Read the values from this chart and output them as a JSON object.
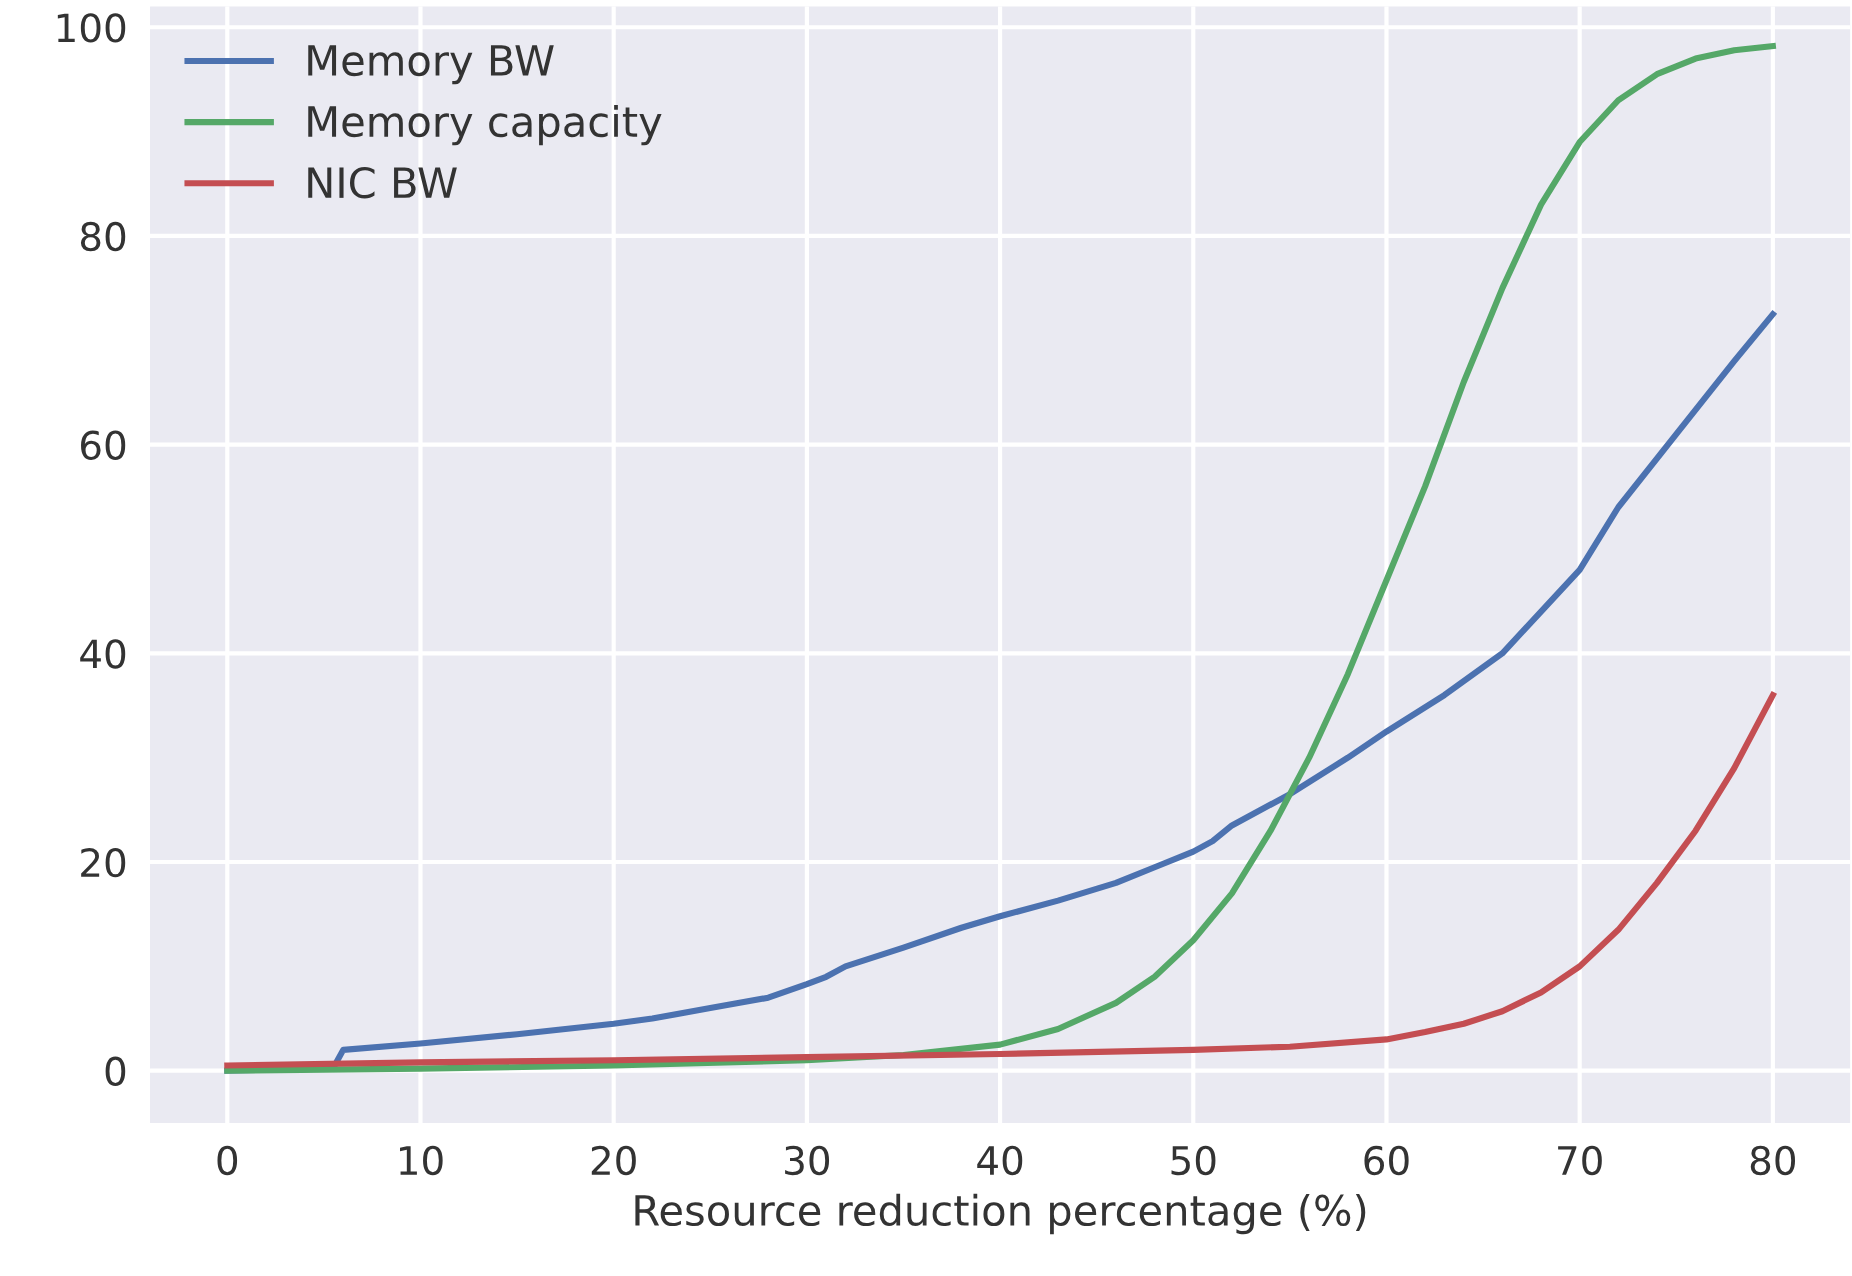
{
  "chart_data": {
    "type": "line",
    "xlabel": "Resource reduction percentage (%)",
    "xlim": [
      -4,
      84
    ],
    "xticks": [
      0,
      10,
      20,
      30,
      40,
      50,
      60,
      70,
      80
    ],
    "ylim": [
      -5,
      102
    ],
    "yticks": [
      0,
      20,
      40,
      60,
      80,
      100
    ],
    "grid": true,
    "legend": "top left",
    "marker": "none",
    "line_style": "solid",
    "series": [
      {
        "name": "Memory BW",
        "color": "#4c72b0",
        "x": [
          0,
          5.5,
          6,
          10,
          15,
          20,
          22,
          25,
          28,
          30,
          31,
          32,
          35,
          38,
          40,
          43,
          46,
          48,
          50,
          51,
          52,
          55,
          58,
          60,
          63,
          66,
          68,
          70,
          72,
          75,
          78,
          80
        ],
        "values": [
          0,
          0.3,
          2,
          2.6,
          3.5,
          4.5,
          5,
          6,
          7,
          8.3,
          9,
          10,
          11.8,
          13.7,
          14.8,
          16.3,
          18,
          19.5,
          21,
          22,
          23.5,
          26.5,
          30,
          32.5,
          36,
          40,
          44,
          48,
          54,
          61,
          68,
          72.5
        ]
      },
      {
        "name": "Memory capacity",
        "color": "#55a868",
        "x": [
          0,
          10,
          20,
          30,
          35,
          40,
          43,
          46,
          48,
          50,
          52,
          54,
          56,
          58,
          60,
          62,
          64,
          66,
          68,
          70,
          72,
          74,
          76,
          78,
          80
        ],
        "values": [
          0,
          0.2,
          0.5,
          1,
          1.5,
          2.5,
          4,
          6.5,
          9,
          12.5,
          17,
          23,
          30,
          38,
          47,
          56,
          66,
          75,
          83,
          89,
          93,
          95.5,
          97,
          97.8,
          98.2
        ]
      },
      {
        "name": "NIC BW",
        "color": "#c44e52",
        "x": [
          0,
          10,
          20,
          30,
          40,
          50,
          55,
          60,
          62,
          64,
          66,
          68,
          70,
          72,
          74,
          76,
          78,
          80
        ],
        "values": [
          0.5,
          0.8,
          1,
          1.3,
          1.6,
          2,
          2.3,
          3,
          3.7,
          4.5,
          5.7,
          7.5,
          10,
          13.5,
          18,
          23,
          29,
          36
        ]
      }
    ]
  }
}
